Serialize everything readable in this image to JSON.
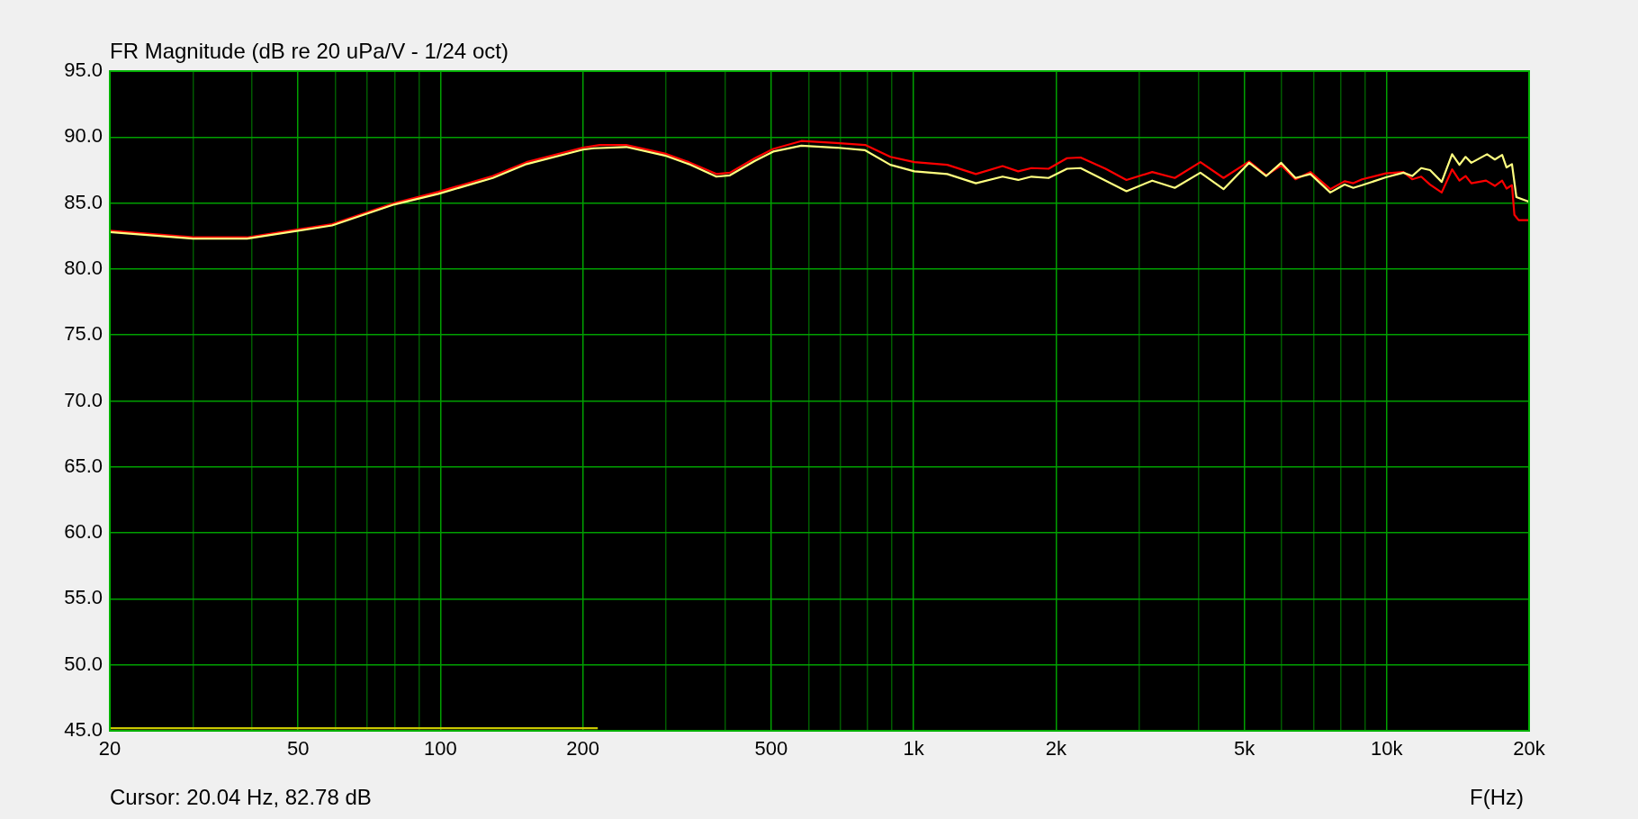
{
  "chart_data": {
    "type": "line",
    "title": "FR Magnitude (dB re 20 uPa/V - 1/24 oct)",
    "xlabel": "F(Hz)",
    "annotations": [
      "Cursor: 20.04 Hz, 82.78 dB"
    ],
    "log": "x",
    "grid": true,
    "legend": false,
    "marker": "none",
    "line_style": "solid",
    "xlim": [
      20,
      20000
    ],
    "ylim": [
      45,
      95
    ],
    "xticks": [
      20,
      {
        "value": 30,
        "label": null
      },
      {
        "value": 40,
        "label": null
      },
      50,
      {
        "value": 60,
        "label": null
      },
      {
        "value": 70,
        "label": null
      },
      {
        "value": 80,
        "label": null
      },
      {
        "value": 90,
        "label": null
      },
      100,
      200,
      {
        "value": 300,
        "label": null
      },
      {
        "value": 400,
        "label": null
      },
      500,
      {
        "value": 600,
        "label": null
      },
      {
        "value": 700,
        "label": null
      },
      {
        "value": 800,
        "label": null
      },
      {
        "value": 900,
        "label": null
      },
      {
        "value": 1000,
        "label": "1k"
      },
      {
        "value": 2000,
        "label": "2k"
      },
      {
        "value": 3000,
        "label": null
      },
      {
        "value": 4000,
        "label": null
      },
      {
        "value": 5000,
        "label": "5k"
      },
      {
        "value": 6000,
        "label": null
      },
      {
        "value": 7000,
        "label": null
      },
      {
        "value": 8000,
        "label": null
      },
      {
        "value": 9000,
        "label": null
      },
      {
        "value": 10000,
        "label": "10k"
      },
      {
        "value": 20000,
        "label": "20k"
      }
    ],
    "yticks": [
      {
        "value": 45,
        "label": "45.0"
      },
      {
        "value": 50,
        "label": "50.0"
      },
      {
        "value": 55,
        "label": "55.0"
      },
      {
        "value": 60,
        "label": "60.0"
      },
      {
        "value": 65,
        "label": "65.0"
      },
      {
        "value": 70,
        "label": "70.0"
      },
      {
        "value": 75,
        "label": "75.0"
      },
      {
        "value": 80,
        "label": "80.0"
      },
      {
        "value": 85,
        "label": "85.0"
      },
      {
        "value": 90,
        "label": "90.0"
      },
      {
        "value": 95,
        "label": "95.0"
      }
    ],
    "series": [
      {
        "color": "#ffff80",
        "x": [
          20,
          30,
          39,
          59,
          80,
          99,
          129,
          152,
          200,
          211,
          247,
          298,
          335,
          383,
          409,
          462,
          505,
          579,
          686,
          790,
          893,
          1004,
          1178,
          1354,
          1542,
          1664,
          1775,
          1929,
          2110,
          2254,
          2546,
          2818,
          3195,
          3565,
          4039,
          4520,
          5120,
          5565,
          5985,
          6415,
          6900,
          7600,
          8150,
          8500,
          8870,
          9960,
          10850,
          11320,
          11830,
          12350,
          13070,
          13750,
          14250,
          14680,
          15100,
          16300,
          16930,
          17540,
          17920,
          18400,
          18800,
          20000
        ],
        "values": [
          82.8,
          82.3,
          82.3,
          83.3,
          84.9,
          85.7,
          86.9,
          87.95,
          89.05,
          89.15,
          89.25,
          88.6,
          87.95,
          87.0,
          87.1,
          88.2,
          88.9,
          89.35,
          89.2,
          89.0,
          87.9,
          87.4,
          87.2,
          86.5,
          87.0,
          86.75,
          87.0,
          86.9,
          87.6,
          87.65,
          86.7,
          85.9,
          86.7,
          86.15,
          87.3,
          86.05,
          88.05,
          87.05,
          88.05,
          86.9,
          87.2,
          85.8,
          86.4,
          86.15,
          86.35,
          86.95,
          87.3,
          87.05,
          87.65,
          87.5,
          86.6,
          88.7,
          87.9,
          88.5,
          88.05,
          88.7,
          88.3,
          88.65,
          87.7,
          87.95,
          85.45,
          85.1
        ]
      },
      {
        "color": "#ff0000",
        "x": [
          20,
          30,
          39,
          59,
          80,
          99,
          129,
          152,
          200,
          217,
          247,
          298,
          335,
          383,
          409,
          462,
          505,
          579,
          686,
          790,
          893,
          1004,
          1178,
          1354,
          1542,
          1664,
          1775,
          1929,
          2110,
          2254,
          2546,
          2818,
          3195,
          3565,
          4039,
          4520,
          5120,
          5565,
          5985,
          6415,
          6900,
          7600,
          8150,
          8500,
          8870,
          9960,
          10850,
          11320,
          11830,
          12350,
          13070,
          13750,
          14250,
          14680,
          15100,
          16220,
          16930,
          17540,
          17920,
          18400,
          18620,
          19010,
          20000
        ],
        "values": [
          82.9,
          82.4,
          82.4,
          83.4,
          85.0,
          85.85,
          87.05,
          88.1,
          89.2,
          89.4,
          89.4,
          88.75,
          88.1,
          87.2,
          87.3,
          88.4,
          89.1,
          89.7,
          89.55,
          89.4,
          88.5,
          88.1,
          87.9,
          87.2,
          87.8,
          87.4,
          87.65,
          87.6,
          88.4,
          88.45,
          87.6,
          86.75,
          87.35,
          86.9,
          88.1,
          86.9,
          88.15,
          87.1,
          87.85,
          86.8,
          87.35,
          86.05,
          86.65,
          86.5,
          86.8,
          87.25,
          87.35,
          86.8,
          87.0,
          86.4,
          85.8,
          87.55,
          86.7,
          87.05,
          86.5,
          86.7,
          86.3,
          86.7,
          86.1,
          86.35,
          84.1,
          83.7,
          83.7
        ]
      },
      {
        "color": "#c8c800",
        "x": [
          20,
          215
        ],
        "values": [
          45.2,
          45.2
        ]
      }
    ]
  }
}
